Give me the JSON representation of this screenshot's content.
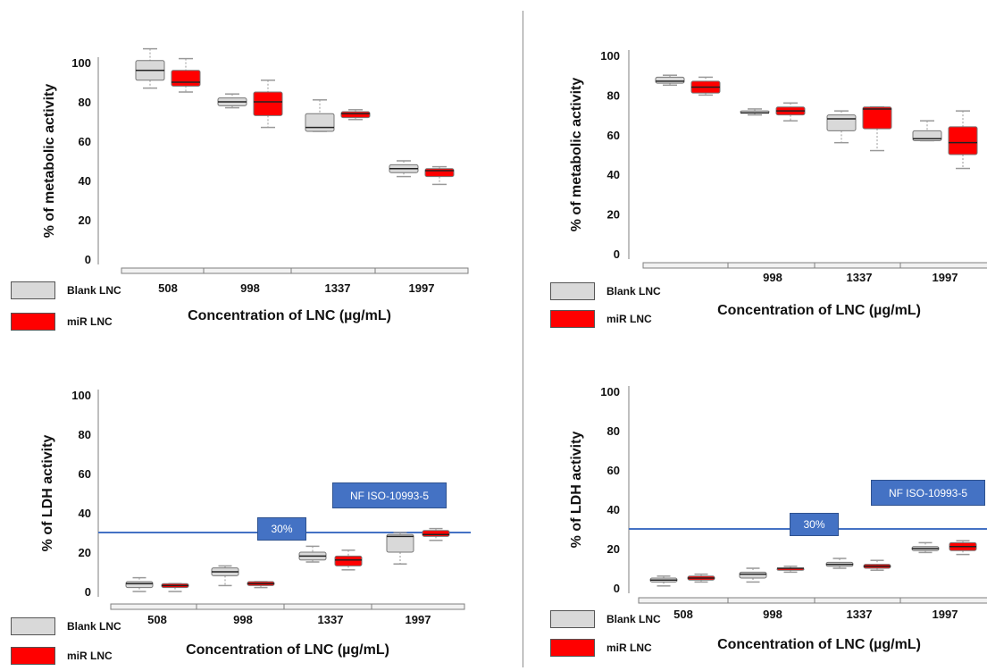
{
  "legend": {
    "blank": {
      "label": "Blank LNC",
      "color": "#d9d9d9"
    },
    "mir": {
      "label": "miR LNC",
      "color": "#ff0000"
    }
  },
  "colors": {
    "threshold": "#4472c4",
    "axis": "#7f7f7f",
    "whisker": "#999999"
  },
  "chart_data": [
    {
      "type": "box",
      "panel": "top-left",
      "ylabel": "% of metabolic activity",
      "xlabel": "Concentration of LNC (µg/mL)",
      "ylim": [
        0,
        100
      ],
      "yticks": [
        "0",
        "20",
        "40",
        "60",
        "80",
        "100"
      ],
      "categories": [
        "508",
        "998",
        "1337",
        "1997"
      ],
      "series": [
        {
          "name": "Blank LNC",
          "boxes": [
            {
              "min": 87,
              "q1": 91,
              "median": 96,
              "q3": 101,
              "max": 107
            },
            {
              "min": 77,
              "q1": 78,
              "median": 80,
              "q3": 82,
              "max": 84
            },
            {
              "min": 65,
              "q1": 65,
              "median": 67,
              "q3": 74,
              "max": 81
            },
            {
              "min": 42,
              "q1": 44,
              "median": 46,
              "q3": 48,
              "max": 50
            }
          ]
        },
        {
          "name": "miR LNC",
          "boxes": [
            {
              "min": 85,
              "q1": 88,
              "median": 90,
              "q3": 96,
              "max": 102
            },
            {
              "min": 67,
              "q1": 73,
              "median": 80,
              "q3": 85,
              "max": 91
            },
            {
              "min": 71,
              "q1": 72,
              "median": 74,
              "q3": 75,
              "max": 76
            },
            {
              "min": 38,
              "q1": 42,
              "median": 45,
              "q3": 46,
              "max": 47
            }
          ]
        }
      ]
    },
    {
      "type": "box",
      "panel": "top-right",
      "ylabel": "% of metabolic activity",
      "xlabel": "Concentration of LNC (µg/mL)",
      "ylim": [
        0,
        100
      ],
      "yticks": [
        "0",
        "20",
        "40",
        "60",
        "80",
        "100"
      ],
      "categories": [
        "",
        "998",
        "1337",
        "1997"
      ],
      "series": [
        {
          "name": "Blank LNC",
          "boxes": [
            {
              "min": 85,
              "q1": 86,
              "median": 87,
              "q3": 89,
              "max": 90
            },
            {
              "min": 70,
              "q1": 71,
              "median": 71,
              "q3": 72,
              "max": 73
            },
            {
              "min": 56,
              "q1": 62,
              "median": 68,
              "q3": 70,
              "max": 72
            },
            {
              "min": 57,
              "q1": 57,
              "median": 58,
              "q3": 62,
              "max": 67
            }
          ]
        },
        {
          "name": "miR LNC",
          "boxes": [
            {
              "min": 80,
              "q1": 81,
              "median": 84,
              "q3": 87,
              "max": 89
            },
            {
              "min": 67,
              "q1": 70,
              "median": 72,
              "q3": 74,
              "max": 76
            },
            {
              "min": 52,
              "q1": 63,
              "median": 73,
              "q3": 74,
              "max": 74
            },
            {
              "min": 43,
              "q1": 50,
              "median": 56,
              "q3": 64,
              "max": 72
            }
          ]
        }
      ]
    },
    {
      "type": "box",
      "panel": "bottom-left",
      "ylabel": "% of LDH activity",
      "xlabel": "Concentration of LNC (µg/mL)",
      "ylim": [
        0,
        100
      ],
      "yticks": [
        "0",
        "20",
        "40",
        "60",
        "80",
        "100"
      ],
      "categories": [
        "508",
        "998",
        "1337",
        "1997"
      ],
      "threshold": {
        "value": 30,
        "label": "30%",
        "annotation": "NF ISO-10993-5"
      },
      "series": [
        {
          "name": "Blank LNC",
          "boxes": [
            {
              "min": 0,
              "q1": 2,
              "median": 4,
              "q3": 5,
              "max": 7
            },
            {
              "min": 3,
              "q1": 8,
              "median": 10,
              "q3": 12,
              "max": 13
            },
            {
              "min": 15,
              "q1": 16,
              "median": 18,
              "q3": 20,
              "max": 23
            },
            {
              "min": 14,
              "q1": 20,
              "median": 28,
              "q3": 29,
              "max": 30
            }
          ]
        },
        {
          "name": "miR LNC",
          "boxes": [
            {
              "min": 0,
              "q1": 2,
              "median": 3,
              "q3": 4,
              "max": 4
            },
            {
              "min": 2,
              "q1": 3,
              "median": 4,
              "q3": 5,
              "max": 5
            },
            {
              "min": 11,
              "q1": 13,
              "median": 16,
              "q3": 18,
              "max": 21
            },
            {
              "min": 26,
              "q1": 28,
              "median": 29,
              "q3": 31,
              "max": 32
            }
          ]
        }
      ]
    },
    {
      "type": "box",
      "panel": "bottom-right",
      "ylabel": "% of LDH activity",
      "xlabel": "Concentration of LNC (µg/mL)",
      "ylim": [
        0,
        100
      ],
      "yticks": [
        "0",
        "20",
        "40",
        "60",
        "80",
        "100"
      ],
      "categories": [
        "508",
        "998",
        "1337",
        "1997"
      ],
      "threshold": {
        "value": 30,
        "label": "30%",
        "annotation": "NF ISO-10993-5"
      },
      "series": [
        {
          "name": "Blank LNC",
          "boxes": [
            {
              "min": 1,
              "q1": 3,
              "median": 4,
              "q3": 5,
              "max": 6
            },
            {
              "min": 3,
              "q1": 5,
              "median": 7,
              "q3": 8,
              "max": 10
            },
            {
              "min": 10,
              "q1": 11,
              "median": 12,
              "q3": 13,
              "max": 15
            },
            {
              "min": 18,
              "q1": 19,
              "median": 20,
              "q3": 21,
              "max": 23
            }
          ]
        },
        {
          "name": "miR LNC",
          "boxes": [
            {
              "min": 3,
              "q1": 4,
              "median": 5,
              "q3": 6,
              "max": 7
            },
            {
              "min": 8,
              "q1": 9,
              "median": 10,
              "q3": 10,
              "max": 11
            },
            {
              "min": 9,
              "q1": 10,
              "median": 11,
              "q3": 12,
              "max": 14
            },
            {
              "min": 17,
              "q1": 19,
              "median": 21,
              "q3": 23,
              "max": 24
            }
          ]
        }
      ]
    }
  ]
}
